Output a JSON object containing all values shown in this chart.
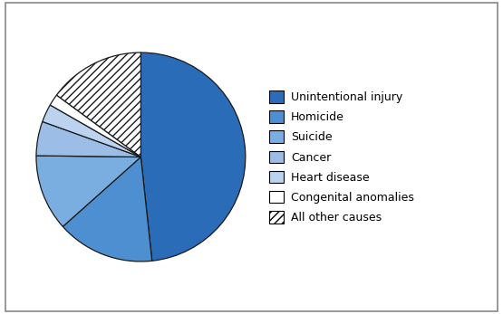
{
  "labels": [
    "Unintentional injury",
    "Homicide",
    "Suicide",
    "Cancer",
    "Heart disease",
    "Congenital anomalies",
    "All other causes"
  ],
  "values": [
    48.3,
    15.1,
    11.8,
    5.3,
    2.8,
    1.8,
    14.9
  ],
  "slice_colors": [
    "#2b6cb8",
    "#4d8fd1",
    "#7aaee0",
    "#9bbde6",
    "#bcd3f0",
    "#ffffff",
    "#ffffff"
  ],
  "pie_edge_color": "#1a1a1a",
  "background_color": "#ffffff",
  "border_color": "#888888",
  "startangle": 90,
  "legend_labels": [
    "Unintentional injury",
    "Homicide",
    "Suicide",
    "Cancer",
    "Heart disease",
    "Congenital anomalies",
    "All other causes"
  ],
  "font_size": 9.0
}
